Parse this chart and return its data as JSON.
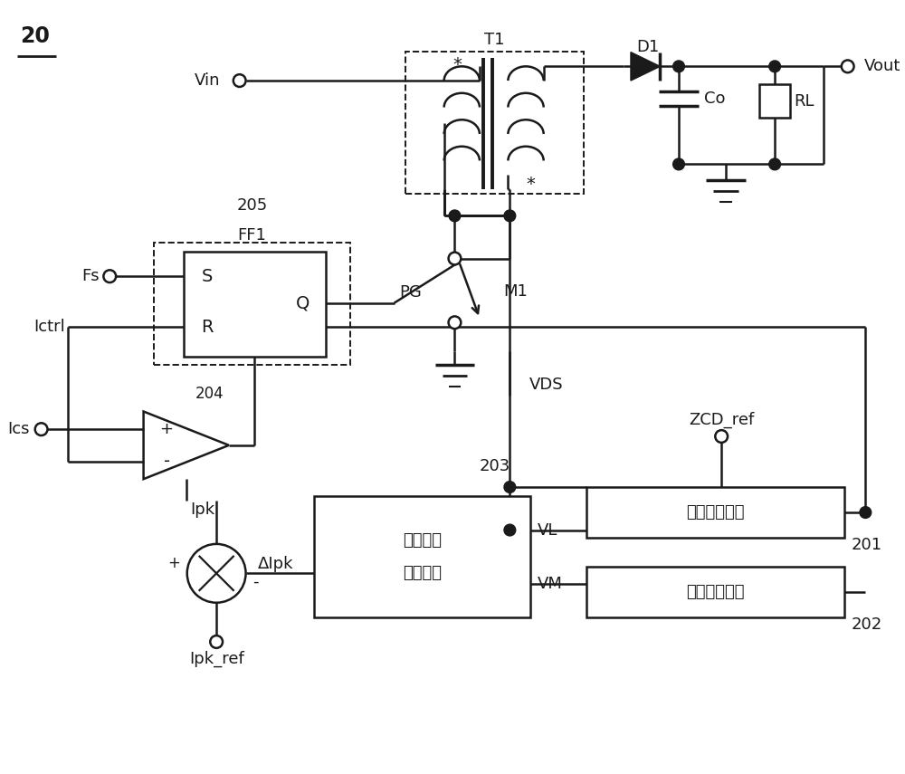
{
  "bg_color": "#ffffff",
  "lc": "#1a1a1a",
  "lw": 1.8,
  "fig_w": 10.0,
  "fig_h": 8.55,
  "xlim": [
    0,
    10
  ],
  "ylim": [
    0,
    8.55
  ],
  "label_20": "20",
  "vin_label": "Vin",
  "vout_label": "Vout",
  "t1_label": "T1",
  "d1_label": "D1",
  "co_label": "Co",
  "rl_label": "RL",
  "ff1_label": "FF1",
  "n205": "205",
  "s_label": "S",
  "r_label": "R",
  "q_label": "Q",
  "fs_label": "Fs",
  "ictrl_label": "Ictrl",
  "pg_label": "PG",
  "m1_label": "M1",
  "n204": "204",
  "plus_label": "+",
  "minus_label": "-",
  "ipk_label": "Ipk",
  "ics_label": "Ics",
  "delta_ipk": "ΔIpk",
  "ipk_ref": "Ipk_ref",
  "n203": "203",
  "blk203_line1": "峰値信号",
  "blk203_line2": "调整电路",
  "vl_label": "VL",
  "vm_label": "VM",
  "vds_label": "VDS",
  "zcd_ref": "ZCD_ref",
  "n201": "201",
  "blk201_text": "谷底检测电路",
  "n202": "202",
  "blk202_text": "模式检测电路"
}
